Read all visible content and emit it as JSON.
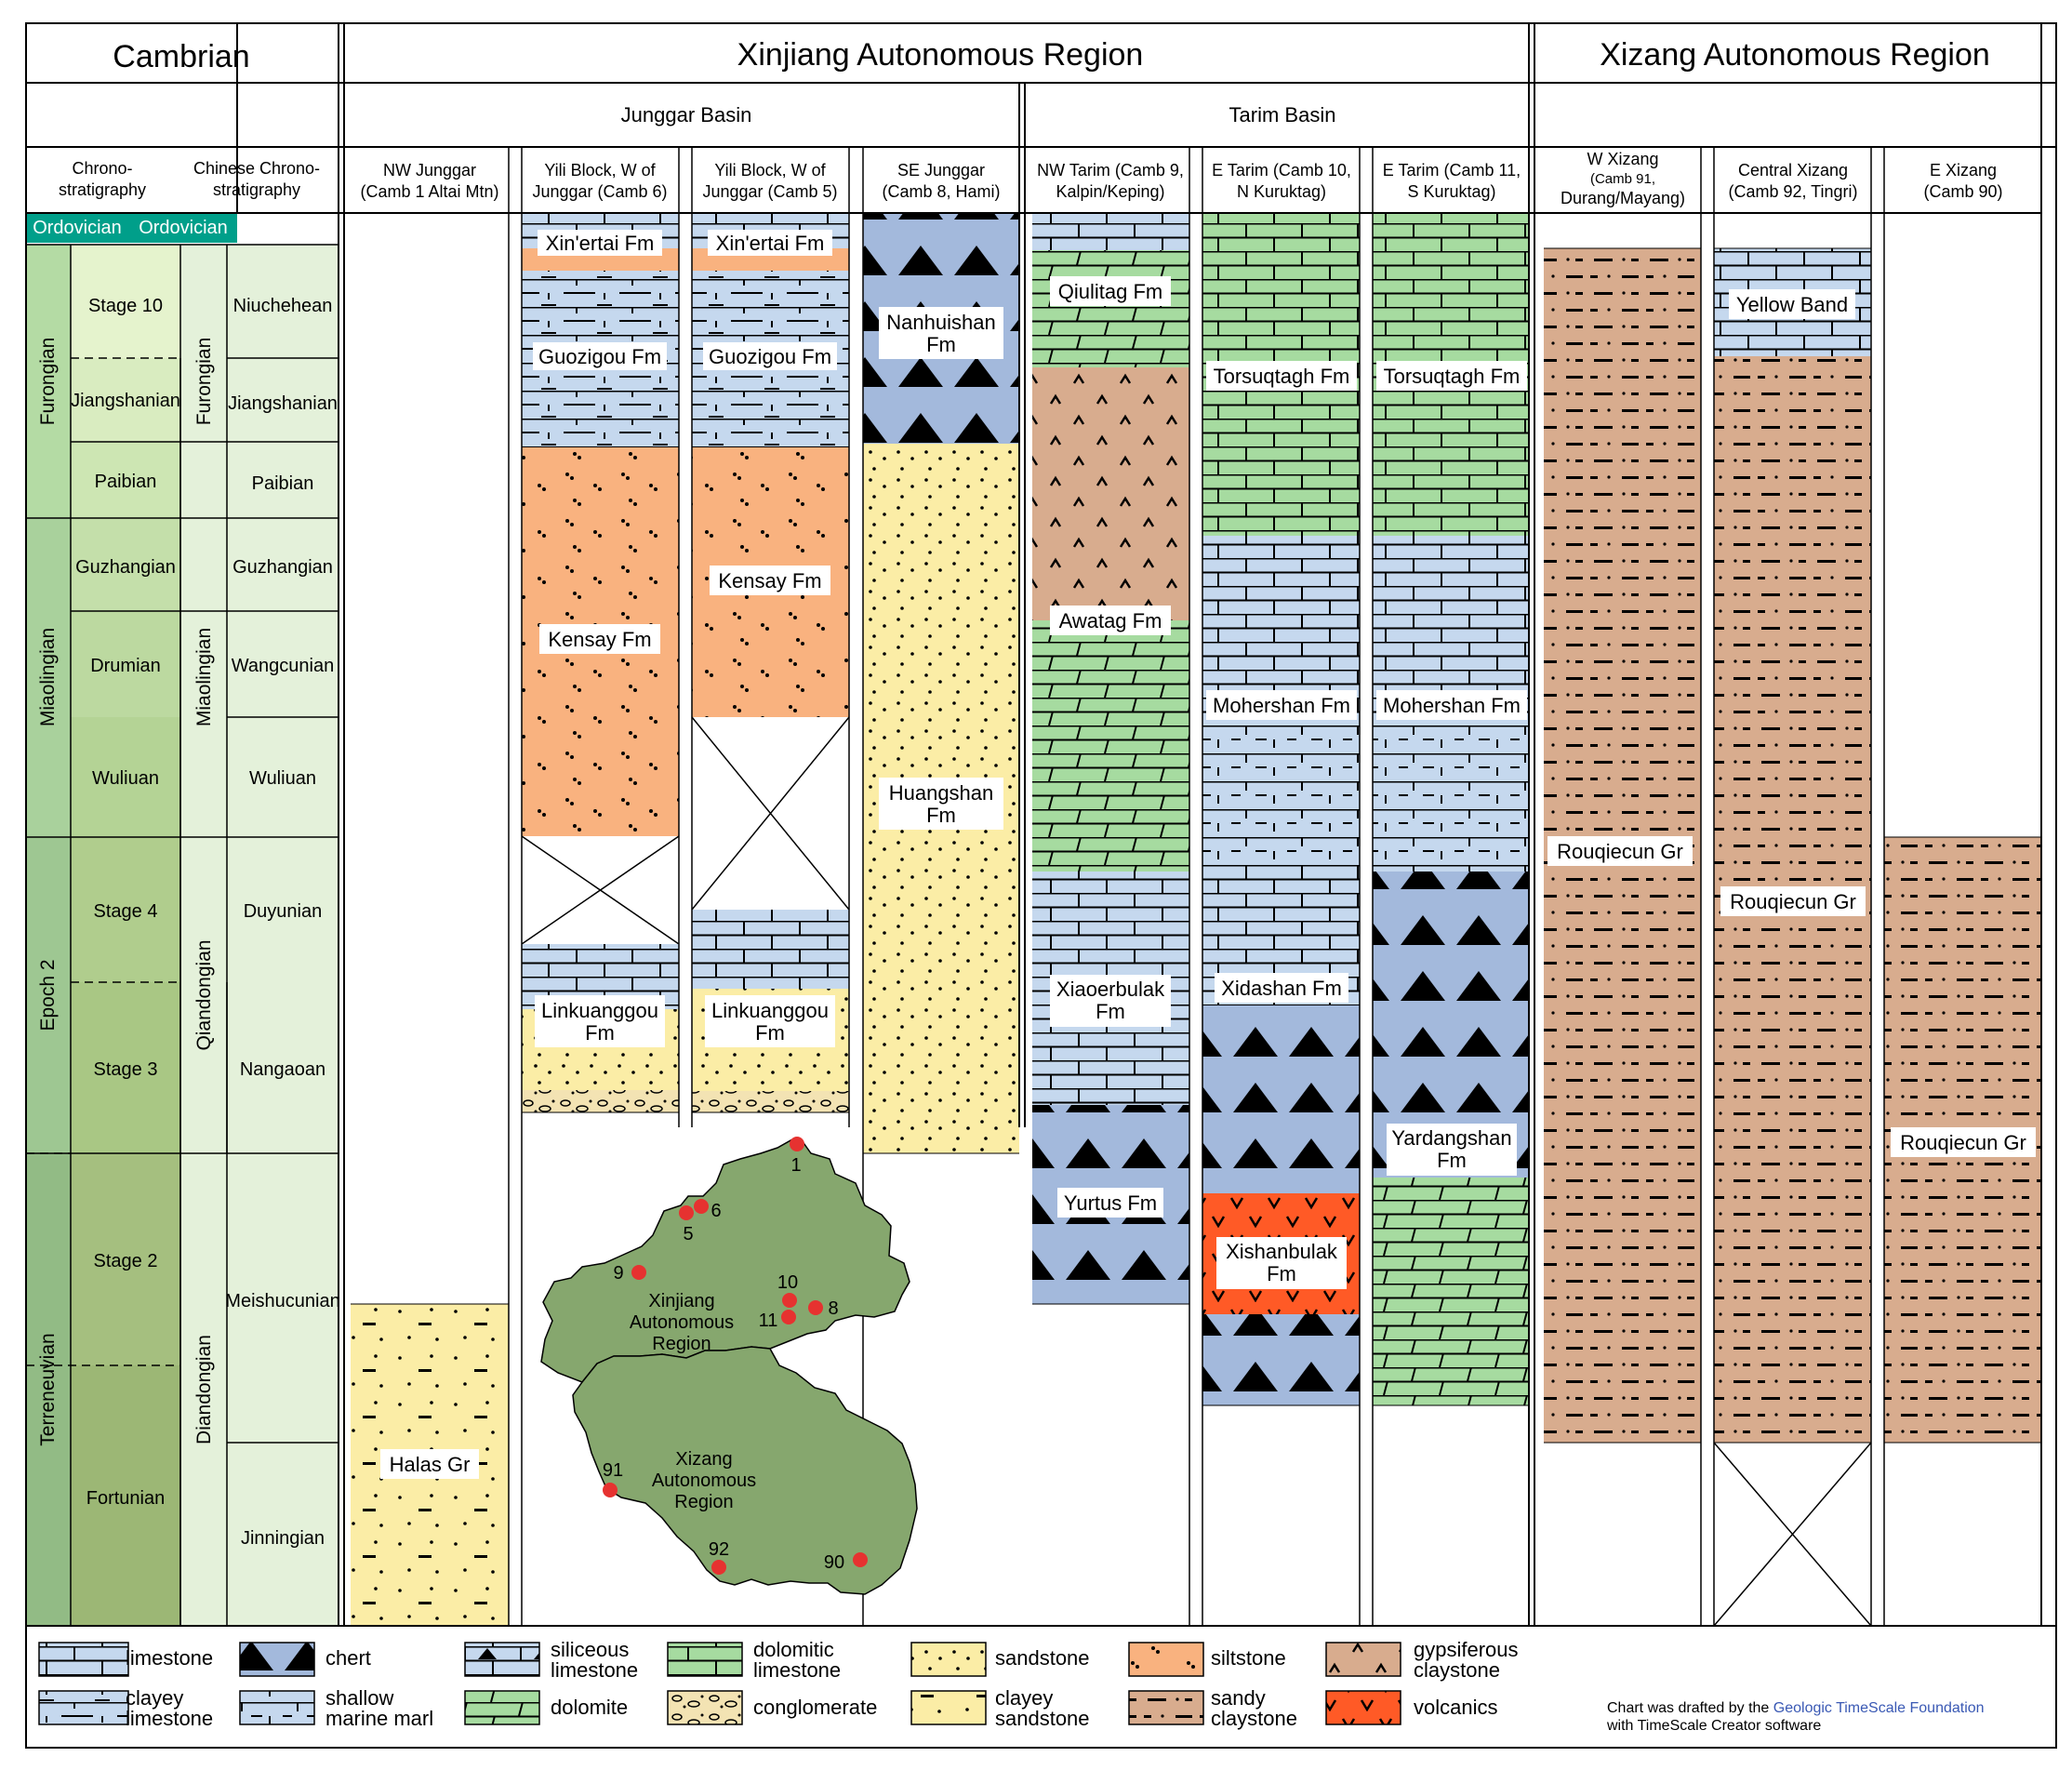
{
  "headers": {
    "cambrian": "Cambrian",
    "xinjiang": "Xinjiang Autonomous Region",
    "xizang": "Xizang Autonomous Region",
    "junggar_basin": "Junggar Basin",
    "tarim_basin": "Tarim Basin"
  },
  "column_titles": {
    "chrono": [
      "Chrono-",
      "stratigraphy"
    ],
    "chinese": [
      "Chinese Chrono-",
      "stratigraphy"
    ],
    "nw_junggar": [
      "NW Junggar",
      "(Camb 1 Altai Mtn)"
    ],
    "yili6": [
      "Yili Block, W of",
      "Junggar (Camb 6)"
    ],
    "yili5": [
      "Yili Block, W of",
      "Junggar (Camb 5)"
    ],
    "se_junggar": [
      "SE Junggar",
      "(Camb 8, Hami)"
    ],
    "nw_tarim": [
      "NW Tarim (Camb 9,",
      "Kalpin/Keping)"
    ],
    "e_tarim10": [
      "E Tarim (Camb 10,",
      "N Kuruktag)"
    ],
    "e_tarim11": [
      "E Tarim (Camb 11,",
      "S Kuruktag)"
    ],
    "w_xizang": [
      "W Xizang",
      "(Camb 91,",
      "Durang/Mayang)"
    ],
    "central_xizang": [
      "Central Xizang",
      "(Camb 92, Tingri)"
    ],
    "e_xizang": [
      "E Xizang",
      "(Camb 90)"
    ]
  },
  "ordovician": "Ordovician",
  "epochs": [
    "Furongian",
    "Miaolingian",
    "Epoch 2",
    "Terreneuvian"
  ],
  "stages": [
    "Stage 10",
    "Jiangshanian",
    "Paibian",
    "Guzhangian",
    "Drumian",
    "Wuliuan",
    "Stage 4",
    "Stage 3",
    "Stage 2",
    "Fortunian"
  ],
  "chinese_series": [
    "Furongian",
    "Miaolingian",
    "Qiandongian",
    "Diandongian"
  ],
  "chinese_stages": [
    "Niuchehean",
    "Jiangshanian",
    "Paibian",
    "Guzhangian",
    "Wangcunian",
    "Wuliuan",
    "Duyunian",
    "Nangaoan",
    "Meishucunian",
    "Jinningian"
  ],
  "formations": {
    "halas": "Halas Gr",
    "xinertai6": "Xin'ertai Fm",
    "guozigou6": "Guozigou Fm",
    "kensay6": "Kensay Fm",
    "linkuanggou6": [
      "Linkuanggou",
      "Fm"
    ],
    "xinertai5": "Xin'ertai Fm",
    "guozigou5": "Guozigou Fm",
    "kensay5": "Kensay Fm",
    "linkuanggou5": [
      "Linkuanggou",
      "Fm"
    ],
    "nanhuishan": [
      "Nanhuishan",
      "Fm"
    ],
    "huangshan": [
      "Huangshan",
      "Fm"
    ],
    "qiulitag": "Qiulitag Fm",
    "awatag": "Awatag Fm",
    "xiaoerbulak": [
      "Xiaoerbulak",
      "Fm"
    ],
    "yurtus": "Yurtus Fm",
    "torsuqtagh10": "Torsuqtagh Fm",
    "mohershan10": "Mohershan Fm",
    "xidashan": "Xidashan Fm",
    "xishanbulak": [
      "Xishanbulak",
      "Fm"
    ],
    "torsuqtagh11": "Torsuqtagh Fm",
    "mohershan11": "Mohershan Fm",
    "yardangshan": [
      "Yardangshan",
      "Fm"
    ],
    "rouqiecun91": "Rouqiecun Gr",
    "yellow_band": "Yellow Band",
    "rouqiecun92": "Rouqiecun Gr",
    "rouqiecun90": "Rouqiecun Gr"
  },
  "map": {
    "xinjiang_label": [
      "Xinjiang",
      "Autonomous",
      "Region"
    ],
    "xizang_label": [
      "Xizang",
      "Autonomous",
      "Region"
    ],
    "localities": [
      "1",
      "5",
      "6",
      "8",
      "9",
      "10",
      "11",
      "90",
      "91",
      "92"
    ]
  },
  "legend": [
    {
      "name": "limestone",
      "label": [
        "limestone"
      ]
    },
    {
      "name": "chert",
      "label": [
        "chert"
      ]
    },
    {
      "name": "siliceous-limestone",
      "label": [
        "siliceous",
        "limestone"
      ]
    },
    {
      "name": "dolomitic-limestone",
      "label": [
        "dolomitic",
        "limestone"
      ]
    },
    {
      "name": "sandstone",
      "label": [
        "sandstone"
      ]
    },
    {
      "name": "siltstone",
      "label": [
        "siltstone"
      ]
    },
    {
      "name": "gypsiferous-claystone",
      "label": [
        "gypsiferous",
        "claystone"
      ]
    },
    {
      "name": "clayey-limestone",
      "label": [
        "clayey",
        "limestone"
      ]
    },
    {
      "name": "shallow-marine-marl",
      "label": [
        "shallow",
        "marine marl"
      ]
    },
    {
      "name": "dolomite",
      "label": [
        "dolomite"
      ]
    },
    {
      "name": "conglomerate",
      "label": [
        "conglomerate"
      ]
    },
    {
      "name": "clayey-sandstone",
      "label": [
        "clayey",
        "sandstone"
      ]
    },
    {
      "name": "sandy-claystone",
      "label": [
        "sandy",
        "claystone"
      ]
    },
    {
      "name": "volcanics",
      "label": [
        "volcanics"
      ]
    }
  ],
  "credit": {
    "prefix": "Chart was drafted by the ",
    "link": "Geologic TimeScale Foundation",
    "suffix": "with TimeScale Creator software"
  },
  "colors": {
    "limestone": "#c5d8ee",
    "chert": "#a3b9dc",
    "dolomite": "#a6dba0",
    "sandstone": "#fbeda6",
    "siltstone": "#f9b27f",
    "claystone": "#d8ac8e",
    "volcanics": "#ff5a26",
    "map": "#86a76e",
    "ordovician": "#009f8a",
    "credit_link": "#3a59b4"
  }
}
